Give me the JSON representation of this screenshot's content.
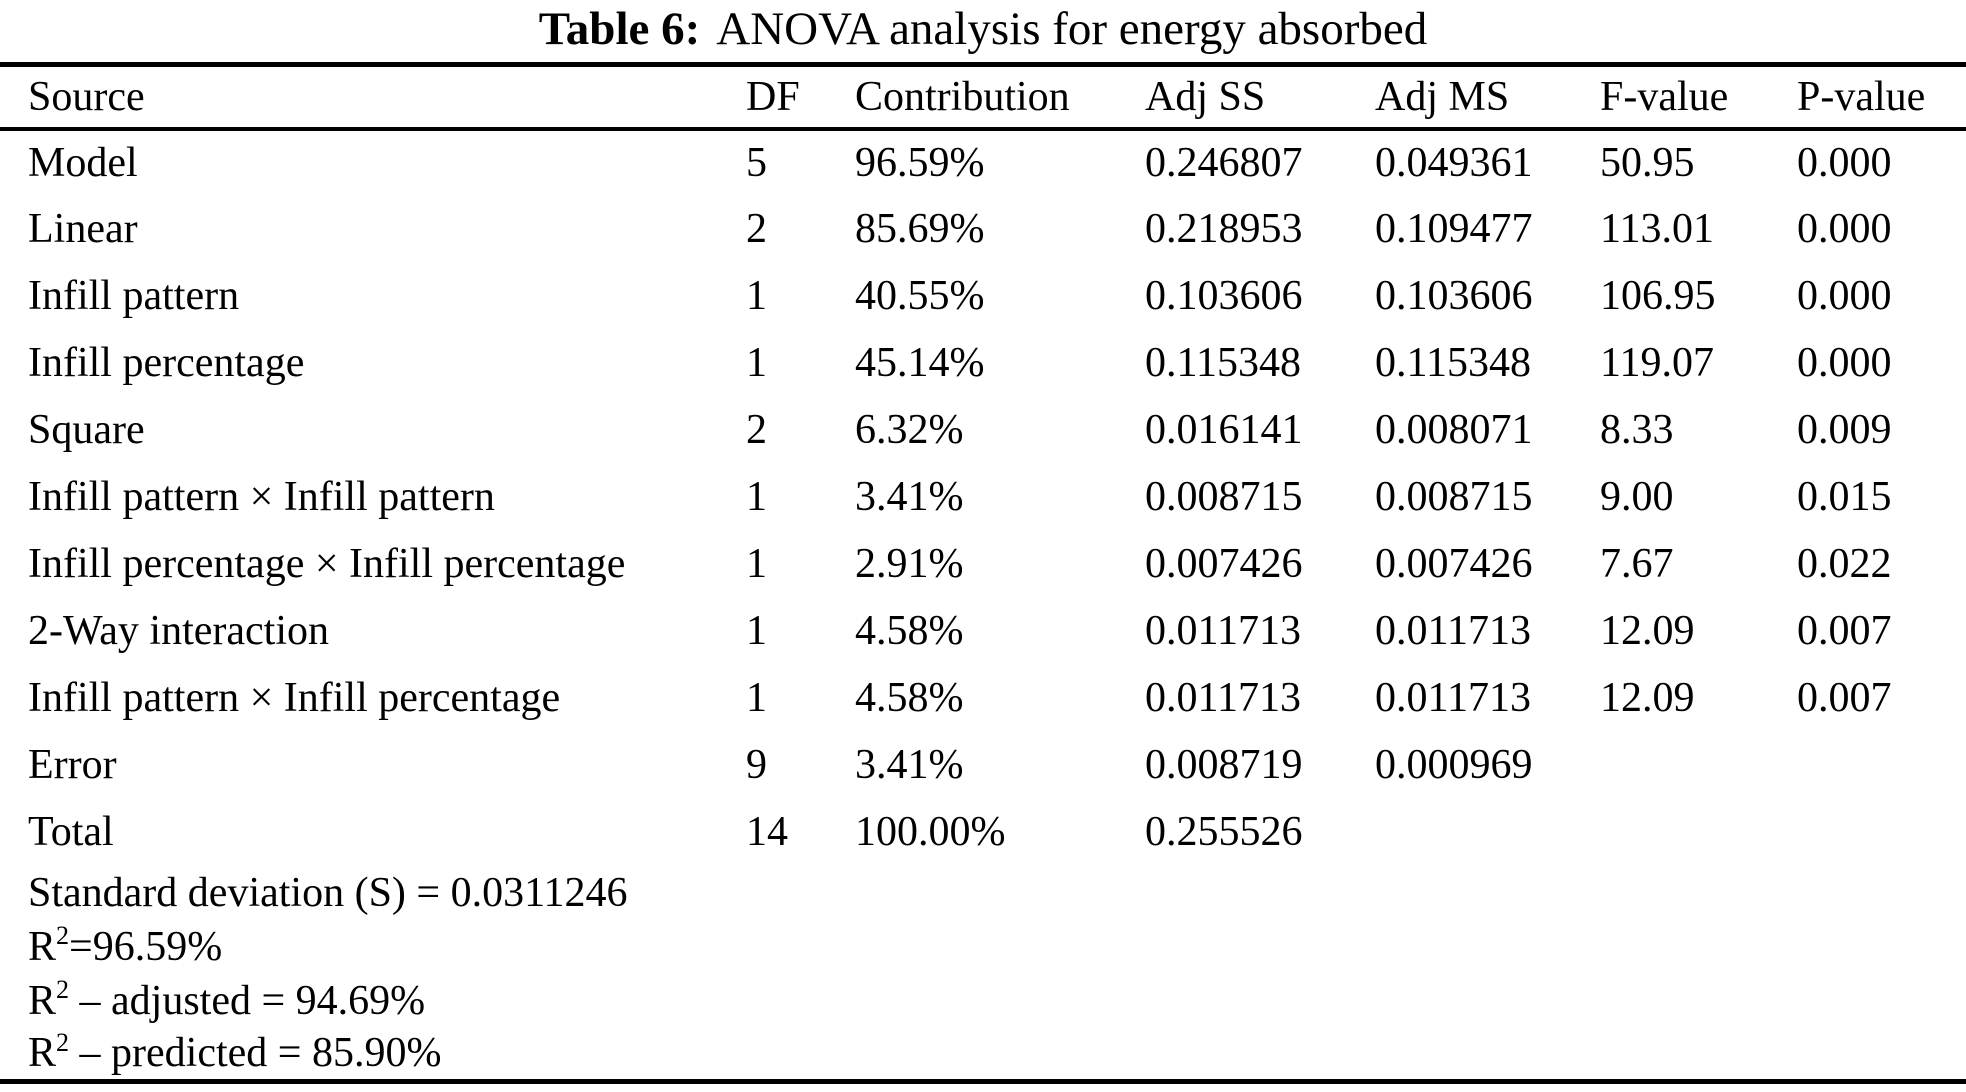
{
  "title": {
    "label": "Table 6:",
    "text": "ANOVA analysis for energy absorbed"
  },
  "colors": {
    "text": "#000000",
    "background": "#ffffff",
    "rules": "#000000"
  },
  "table": {
    "columns": [
      "Source",
      "DF",
      "Contribution",
      "Adj SS",
      "Adj MS",
      "F-value",
      "P-value"
    ],
    "rows": [
      {
        "source": "Model",
        "df": "5",
        "contribution": "96.59%",
        "adj_ss": "0.246807",
        "adj_ms": "0.049361",
        "f_value": "50.95",
        "p_value": "0.000"
      },
      {
        "source": "Linear",
        "df": "2",
        "contribution": "85.69%",
        "adj_ss": "0.218953",
        "adj_ms": "0.109477",
        "f_value": "113.01",
        "p_value": "0.000"
      },
      {
        "source": "Infill pattern",
        "df": "1",
        "contribution": "40.55%",
        "adj_ss": "0.103606",
        "adj_ms": "0.103606",
        "f_value": "106.95",
        "p_value": "0.000"
      },
      {
        "source": "Infill percentage",
        "df": "1",
        "contribution": "45.14%",
        "adj_ss": "0.115348",
        "adj_ms": "0.115348",
        "f_value": "119.07",
        "p_value": "0.000"
      },
      {
        "source": "Square",
        "df": "2",
        "contribution": "6.32%",
        "adj_ss": "0.016141",
        "adj_ms": "0.008071",
        "f_value": "8.33",
        "p_value": "0.009"
      },
      {
        "source": "Infill pattern × Infill pattern",
        "df": "1",
        "contribution": "3.41%",
        "adj_ss": "0.008715",
        "adj_ms": "0.008715",
        "f_value": "9.00",
        "p_value": "0.015"
      },
      {
        "source": "Infill percentage × Infill percentage",
        "df": "1",
        "contribution": "2.91%",
        "adj_ss": "0.007426",
        "adj_ms": "0.007426",
        "f_value": "7.67",
        "p_value": "0.022"
      },
      {
        "source": "2-Way interaction",
        "df": "1",
        "contribution": "4.58%",
        "adj_ss": "0.011713",
        "adj_ms": "0.011713",
        "f_value": "12.09",
        "p_value": "0.007"
      },
      {
        "source": "Infill pattern × Infill percentage",
        "df": "1",
        "contribution": "4.58%",
        "adj_ss": "0.011713",
        "adj_ms": "0.011713",
        "f_value": "12.09",
        "p_value": "0.007"
      },
      {
        "source": "Error",
        "df": "9",
        "contribution": "3.41%",
        "adj_ss": "0.008719",
        "adj_ms": "0.000969",
        "f_value": "",
        "p_value": ""
      },
      {
        "source": "Total",
        "df": "14",
        "contribution": "100.00%",
        "adj_ss": "0.255526",
        "adj_ms": "",
        "f_value": "",
        "p_value": ""
      }
    ],
    "footer": [
      {
        "base": "Standard deviation (S) = 0.0311246",
        "sup": "",
        "rest": ""
      },
      {
        "base": "R",
        "sup": "2",
        "rest": "=96.59%"
      },
      {
        "base": "R",
        "sup": "2",
        "rest": " – adjusted = 94.69%"
      },
      {
        "base": "R",
        "sup": "2",
        "rest": " – predicted = 85.90%"
      }
    ]
  }
}
